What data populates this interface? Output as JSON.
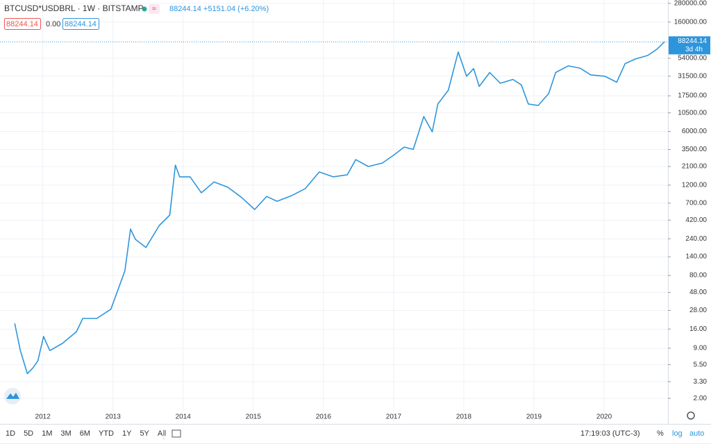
{
  "chart_data": {
    "type": "line",
    "log_scale": true,
    "grid": true,
    "header": {
      "symbol": "BTCUSD*USDBRL · 1W · BITSTAMP",
      "quote": "88244.14 +5151.04 (+6.20%)",
      "boxes": [
        "88244.14",
        "0.00",
        "88244.14"
      ]
    },
    "x": [
      2011.6,
      2011.68,
      2011.78,
      2011.86,
      2011.93,
      2012.01,
      2012.1,
      2012.28,
      2012.48,
      2012.57,
      2012.77,
      2012.97,
      2013.17,
      2013.25,
      2013.32,
      2013.47,
      2013.66,
      2013.81,
      2013.89,
      2013.95,
      2014.1,
      2014.26,
      2014.44,
      2014.64,
      2014.84,
      2015.02,
      2015.19,
      2015.34,
      2015.54,
      2015.74,
      2015.94,
      2016.14,
      2016.34,
      2016.46,
      2016.64,
      2016.84,
      2017.01,
      2017.15,
      2017.28,
      2017.43,
      2017.55,
      2017.63,
      2017.78,
      2017.92,
      2018.04,
      2018.14,
      2018.22,
      2018.37,
      2018.52,
      2018.7,
      2018.82,
      2018.92,
      2019.06,
      2019.21,
      2019.31,
      2019.49,
      2019.66,
      2019.81,
      2020.01,
      2020.18,
      2020.3,
      2020.45,
      2020.62,
      2020.75,
      2020.86
    ],
    "series": [
      {
        "name": "BTCUSD*USDBRL",
        "color": "#2d95dc",
        "values": [
          19,
          8.4,
          4.2,
          5.0,
          6.2,
          12.8,
          8.4,
          10.4,
          14.8,
          22,
          22,
          29,
          92,
          322,
          236,
          185,
          358,
          489,
          2190,
          1540,
          1540,
          953,
          1320,
          1125,
          820,
          578,
          855,
          740,
          870,
          1080,
          1780,
          1540,
          1640,
          2580,
          2100,
          2330,
          2990,
          3760,
          3500,
          9400,
          5940,
          13700,
          20700,
          65200,
          31500,
          39600,
          23200,
          35200,
          25500,
          28600,
          24300,
          13700,
          13100,
          18700,
          35200,
          43000,
          40000,
          32800,
          31500,
          26300,
          46100,
          53000,
          58700,
          70500,
          88244.14
        ]
      }
    ],
    "price_tag_time": "3d 4h",
    "xlim": [
      2011.39,
      2020.91
    ],
    "xticks": [
      2012,
      2013,
      2014,
      2015,
      2016,
      2017,
      2018,
      2019,
      2020
    ],
    "ylim": [
      0.95,
      310000
    ],
    "yticks": [
      {
        "value": 2,
        "label": "2.00"
      },
      {
        "value": 3.3,
        "label": "3.30"
      },
      {
        "value": 5.5,
        "label": "5.50"
      },
      {
        "value": 9,
        "label": "9.00"
      },
      {
        "value": 16,
        "label": "16.00"
      },
      {
        "value": 28,
        "label": "28.00"
      },
      {
        "value": 48,
        "label": "48.00"
      },
      {
        "value": 80,
        "label": "80.00"
      },
      {
        "value": 140,
        "label": "140.00"
      },
      {
        "value": 240,
        "label": "240.00"
      },
      {
        "value": 420,
        "label": "420.00"
      },
      {
        "value": 700,
        "label": "700.00"
      },
      {
        "value": 1200,
        "label": "1200.00"
      },
      {
        "value": 2100,
        "label": "2100.00"
      },
      {
        "value": 3500,
        "label": "3500.00"
      },
      {
        "value": 6000,
        "label": "6000.00"
      },
      {
        "value": 10500,
        "label": "10500.00"
      },
      {
        "value": 17500,
        "label": "17500.00"
      },
      {
        "value": 31500,
        "label": "31500.00"
      },
      {
        "value": 54000,
        "label": "54000.00"
      },
      {
        "value": 160000,
        "label": "160000.00"
      },
      {
        "value": 280000,
        "label": "280000.00"
      }
    ]
  },
  "toolbar": {
    "ranges": [
      "1D",
      "5D",
      "1M",
      "3M",
      "6M",
      "YTD",
      "1Y",
      "5Y",
      "All"
    ],
    "clock": "17:19:03 (UTC-3)",
    "options": [
      "%",
      "log",
      "auto"
    ]
  }
}
